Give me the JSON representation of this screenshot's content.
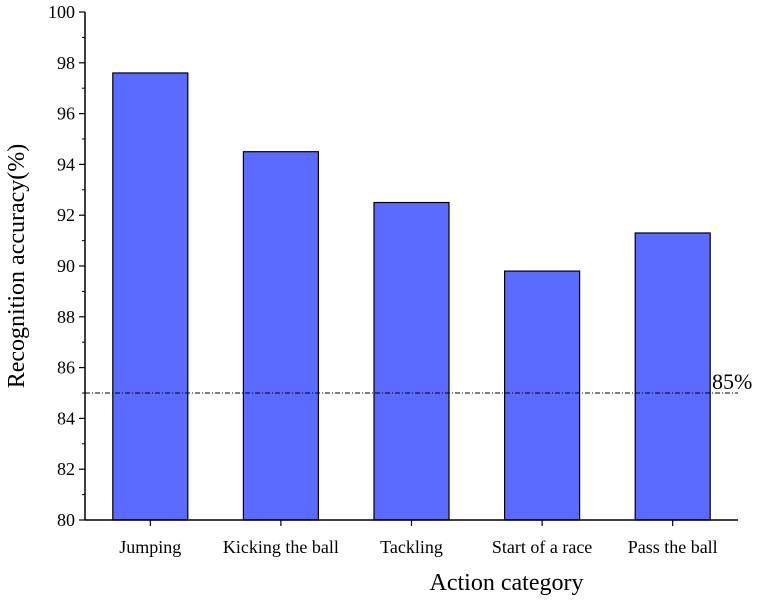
{
  "chart_data": {
    "type": "bar",
    "categories": [
      "Jumping",
      "Kicking the ball",
      "Tackling",
      "Start of a race",
      "Pass the ball"
    ],
    "values": [
      97.6,
      94.5,
      92.5,
      89.8,
      91.3
    ],
    "title": "",
    "xlabel": "Action category",
    "ylabel": "Recognition accuracy(%)",
    "ylim": [
      80,
      100
    ],
    "yticks": [
      80,
      82,
      84,
      86,
      88,
      90,
      92,
      94,
      96,
      98,
      100
    ],
    "ytick_labels": [
      "80",
      "82",
      "84",
      "86",
      "88",
      "90",
      "92",
      "94",
      "96",
      "98",
      "100"
    ],
    "reference_line": {
      "value": 85,
      "label": "85%"
    },
    "grid": false,
    "bar_color": "#5b6bff",
    "bar_edge_color": "#000000"
  }
}
